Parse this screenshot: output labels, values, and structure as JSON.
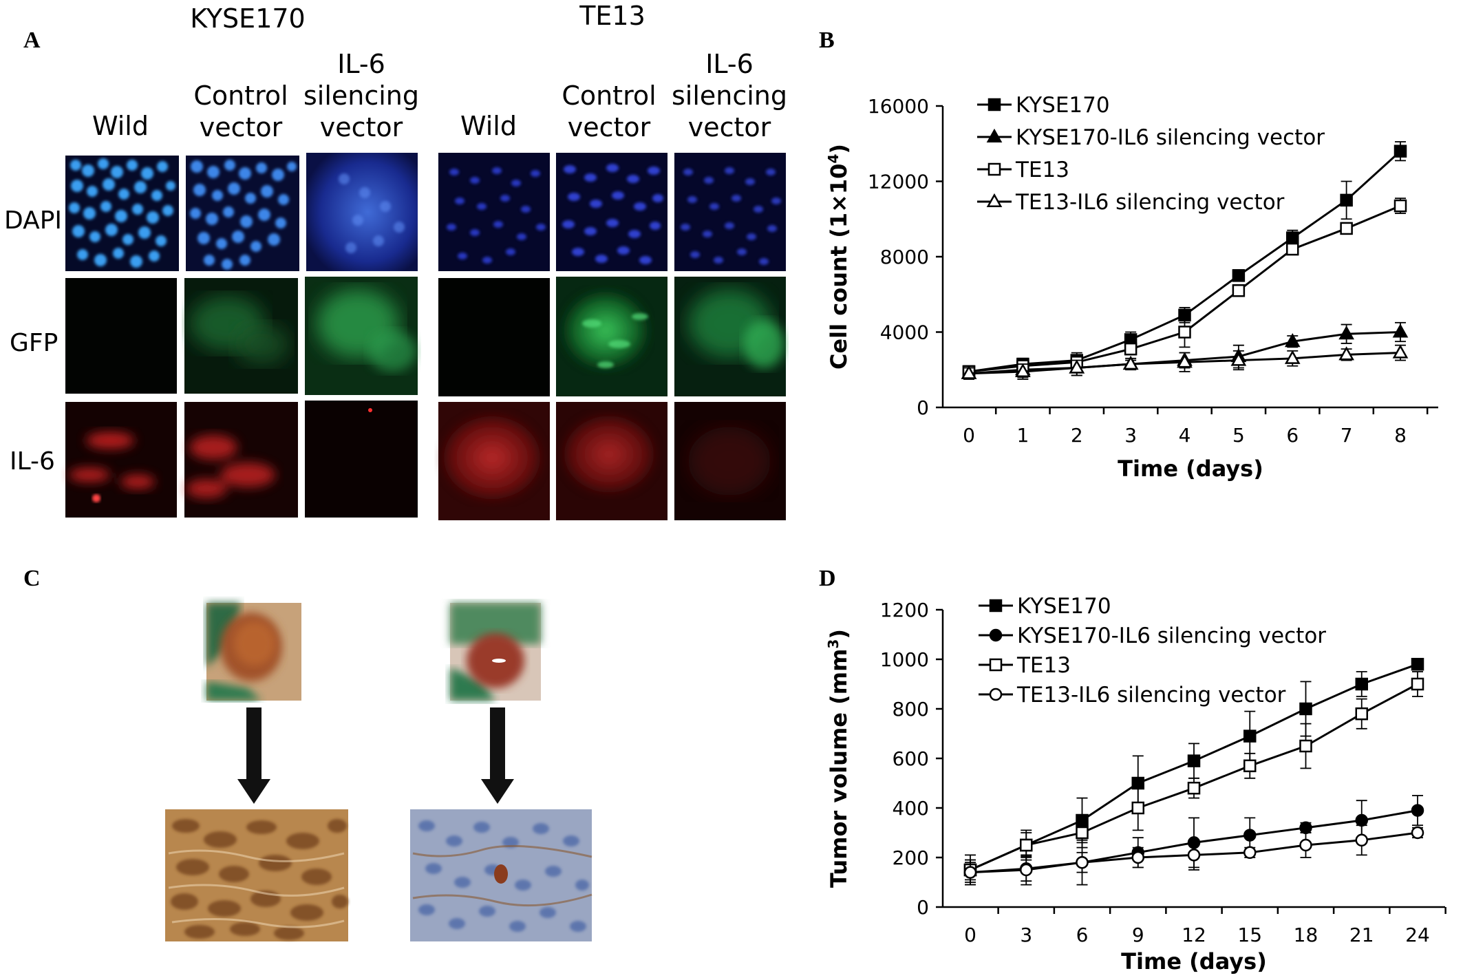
{
  "panel_a": {
    "letter": "A",
    "groups": [
      {
        "title": "KYSE170",
        "columns": [
          "Wild",
          "Control\nvector",
          "IL-6\nsilencing\nvector"
        ]
      },
      {
        "title": "TE13",
        "columns": [
          "Wild",
          "Control\nvector",
          "IL-6\nsilencing\nvector"
        ]
      }
    ],
    "rows": [
      "DAPI",
      "GFP",
      "IL-6"
    ],
    "colors": {
      "dapi": "#1a3fc4",
      "gfp": "#1f8a3c",
      "il6": "#b31d1d"
    }
  },
  "panel_b": {
    "letter": "B"
  },
  "panel_c": {
    "letter": "C"
  },
  "panel_d": {
    "letter": "D"
  },
  "chart_data": [
    {
      "type": "line",
      "panel": "B",
      "xlabel": "Time (days)",
      "ylabel": "Cell count (1×10",
      "ylabel_sup": "4",
      "ylabel_end": ")",
      "x": [
        0,
        1,
        2,
        3,
        4,
        5,
        6,
        7,
        8
      ],
      "xticks": [
        "0",
        "1",
        "2",
        "3",
        "4",
        "5",
        "6",
        "7",
        "8"
      ],
      "ylim": [
        0,
        16000
      ],
      "yticks": [
        "0",
        "4000",
        "8000",
        "12000",
        "16000"
      ],
      "ytick_values": [
        0,
        4000,
        8000,
        12000,
        16000
      ],
      "legend_position": "top-left",
      "series": [
        {
          "name": "KYSE170",
          "marker": "square-filled",
          "values": [
            1900,
            2300,
            2500,
            3600,
            4900,
            7000,
            9000,
            11000,
            13600
          ],
          "err": [
            300,
            300,
            300,
            400,
            400,
            300,
            400,
            1000,
            500
          ]
        },
        {
          "name": "KYSE170-IL6 silencing vector",
          "marker": "triangle-filled",
          "values": [
            1800,
            2000,
            2100,
            2300,
            2500,
            2700,
            3500,
            3900,
            4000
          ],
          "err": [
            300,
            400,
            400,
            300,
            400,
            600,
            300,
            500,
            500
          ]
        },
        {
          "name": "TE13",
          "marker": "square-open",
          "values": [
            1900,
            2200,
            2400,
            3100,
            4000,
            6200,
            8400,
            9500,
            10700
          ],
          "err": [
            300,
            300,
            500,
            300,
            800,
            300,
            300,
            300,
            400
          ]
        },
        {
          "name": "TE13-IL6 silencing vector",
          "marker": "triangle-open",
          "values": [
            1800,
            1900,
            2100,
            2300,
            2400,
            2500,
            2600,
            2800,
            2900
          ],
          "err": [
            300,
            400,
            400,
            200,
            500,
            500,
            400,
            300,
            400
          ]
        }
      ]
    },
    {
      "type": "line",
      "panel": "D",
      "xlabel": "Time (days)",
      "ylabel": "Tumor volume (mm",
      "ylabel_sup": "3",
      "ylabel_end": ")",
      "x": [
        0,
        3,
        6,
        9,
        12,
        15,
        18,
        21,
        24
      ],
      "xticks": [
        "0",
        "3",
        "6",
        "9",
        "12",
        "15",
        "18",
        "21",
        "24"
      ],
      "ylim": [
        0,
        1200
      ],
      "yticks": [
        "0",
        "200",
        "400",
        "600",
        "800",
        "1000",
        "1200"
      ],
      "ytick_values": [
        0,
        200,
        400,
        600,
        800,
        1000,
        1200
      ],
      "legend_position": "top-left",
      "series": [
        {
          "name": "KYSE170",
          "marker": "square-filled",
          "values": [
            150,
            250,
            350,
            500,
            590,
            690,
            800,
            900,
            980
          ],
          "err": [
            60,
            60,
            90,
            110,
            70,
            100,
            110,
            50,
            0
          ]
        },
        {
          "name": "KYSE170-IL6 silencing vector",
          "marker": "circle-filled",
          "values": [
            140,
            155,
            180,
            220,
            260,
            290,
            320,
            350,
            390
          ],
          "err": [
            50,
            50,
            90,
            60,
            100,
            70,
            20,
            80,
            60
          ]
        },
        {
          "name": "TE13",
          "marker": "square-open",
          "values": [
            150,
            250,
            300,
            400,
            480,
            570,
            650,
            780,
            900
          ],
          "err": [
            40,
            50,
            60,
            90,
            40,
            50,
            90,
            60,
            50
          ]
        },
        {
          "name": "TE13-IL6 silencing vector",
          "marker": "circle-open",
          "values": [
            140,
            150,
            180,
            200,
            210,
            220,
            250,
            270,
            300
          ],
          "err": [
            40,
            60,
            40,
            40,
            60,
            20,
            50,
            60,
            20
          ]
        }
      ]
    }
  ]
}
